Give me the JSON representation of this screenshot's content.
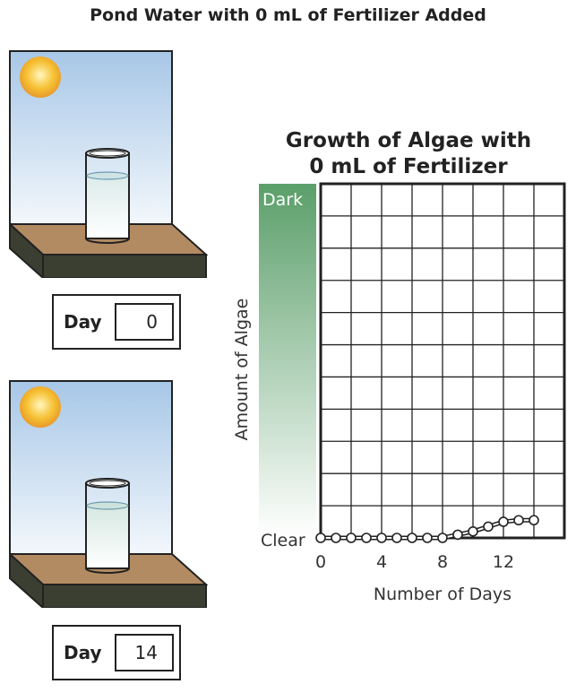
{
  "page_title": "Pond Water with 0 mL of Fertilizer Added",
  "scenes": [
    {
      "day_label": "Day",
      "day_value": "0"
    },
    {
      "day_label": "Day",
      "day_value": "14"
    }
  ],
  "colors": {
    "sky_top": "#a7c7e7",
    "sky_bottom": "#f4f8fc",
    "table_top": "#b38b62",
    "table_front": "#3b3f31",
    "algae_dark": "#5b9f6a",
    "sun": "#f6c133"
  },
  "chart_data": {
    "type": "line",
    "title": [
      "Growth of Algae with",
      "0 mL of Fertilizer"
    ],
    "xlabel": "Number of Days",
    "ylabel": "Amount of Algae",
    "y_scale_labels": {
      "top": "Dark",
      "bottom": "Clear"
    },
    "x_ticks": [
      0,
      4,
      8,
      12
    ],
    "xlim": [
      0,
      16
    ],
    "ylim": [
      0,
      11
    ],
    "grid": true,
    "series": [
      {
        "x": [
          0,
          1,
          2,
          3,
          4,
          5,
          6,
          7,
          8,
          9,
          10,
          11,
          12,
          13,
          14
        ],
        "y": [
          0,
          0,
          0,
          0,
          0,
          0,
          0,
          0,
          0,
          0.1,
          0.2,
          0.35,
          0.5,
          0.55,
          0.55
        ]
      }
    ]
  }
}
